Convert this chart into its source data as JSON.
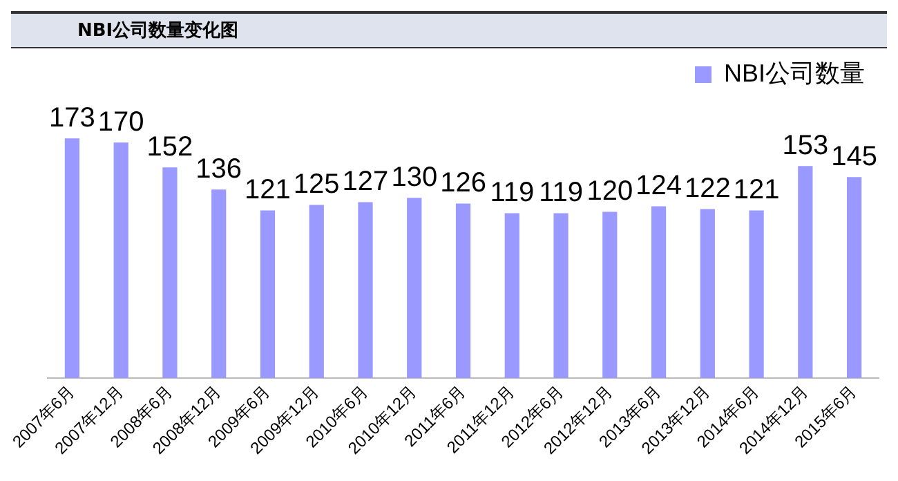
{
  "chart_data": {
    "type": "bar",
    "title": "NBI公司数量变化图",
    "categories": [
      "2007年6月",
      "2007年12月",
      "2008年6月",
      "2008年12月",
      "2009年6月",
      "2009年12月",
      "2010年6月",
      "2010年12月",
      "2011年6月",
      "2011年12月",
      "2012年6月",
      "2012年12月",
      "2013年6月",
      "2013年12月",
      "2014年6月",
      "2014年12月",
      "2015年6月"
    ],
    "series": [
      {
        "name": "NBI公司数量",
        "color": "#9999ff",
        "values": [
          173,
          170,
          152,
          136,
          121,
          125,
          127,
          130,
          126,
          119,
          119,
          120,
          124,
          122,
          121,
          153,
          145
        ]
      }
    ],
    "relative": false,
    "data_labels": true,
    "grid": false,
    "legend": "top right"
  }
}
